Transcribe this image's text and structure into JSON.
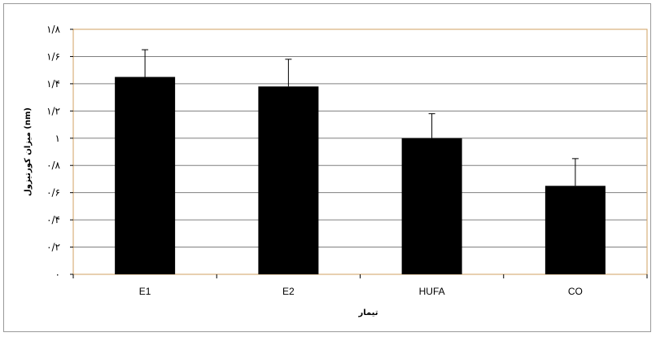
{
  "chart_data": {
    "type": "bar",
    "categories": [
      "E1",
      "E2",
      "HUFA",
      "CO"
    ],
    "values": [
      1.45,
      1.38,
      1.0,
      0.65
    ],
    "errors": [
      0.2,
      0.2,
      0.18,
      0.2
    ],
    "ylim": [
      0,
      1.8
    ],
    "yticks": [
      0,
      0.2,
      0.4,
      0.6,
      0.8,
      1,
      1.2,
      1.4,
      1.6,
      1.8
    ],
    "ytick_labels": [
      "۰",
      "۰/۲",
      "۰/۴",
      "۰/۶",
      "۰/۸",
      "۱",
      "۱/۲",
      "۱/۴",
      "۱/۶",
      "۱/۸"
    ],
    "xlabel": "تیمار",
    "ylabel": "میزان کورتیزول (nm)",
    "grid": true,
    "bar_color": "#000000",
    "plot_border_color": "#d2a060",
    "grid_color": "#808080"
  }
}
